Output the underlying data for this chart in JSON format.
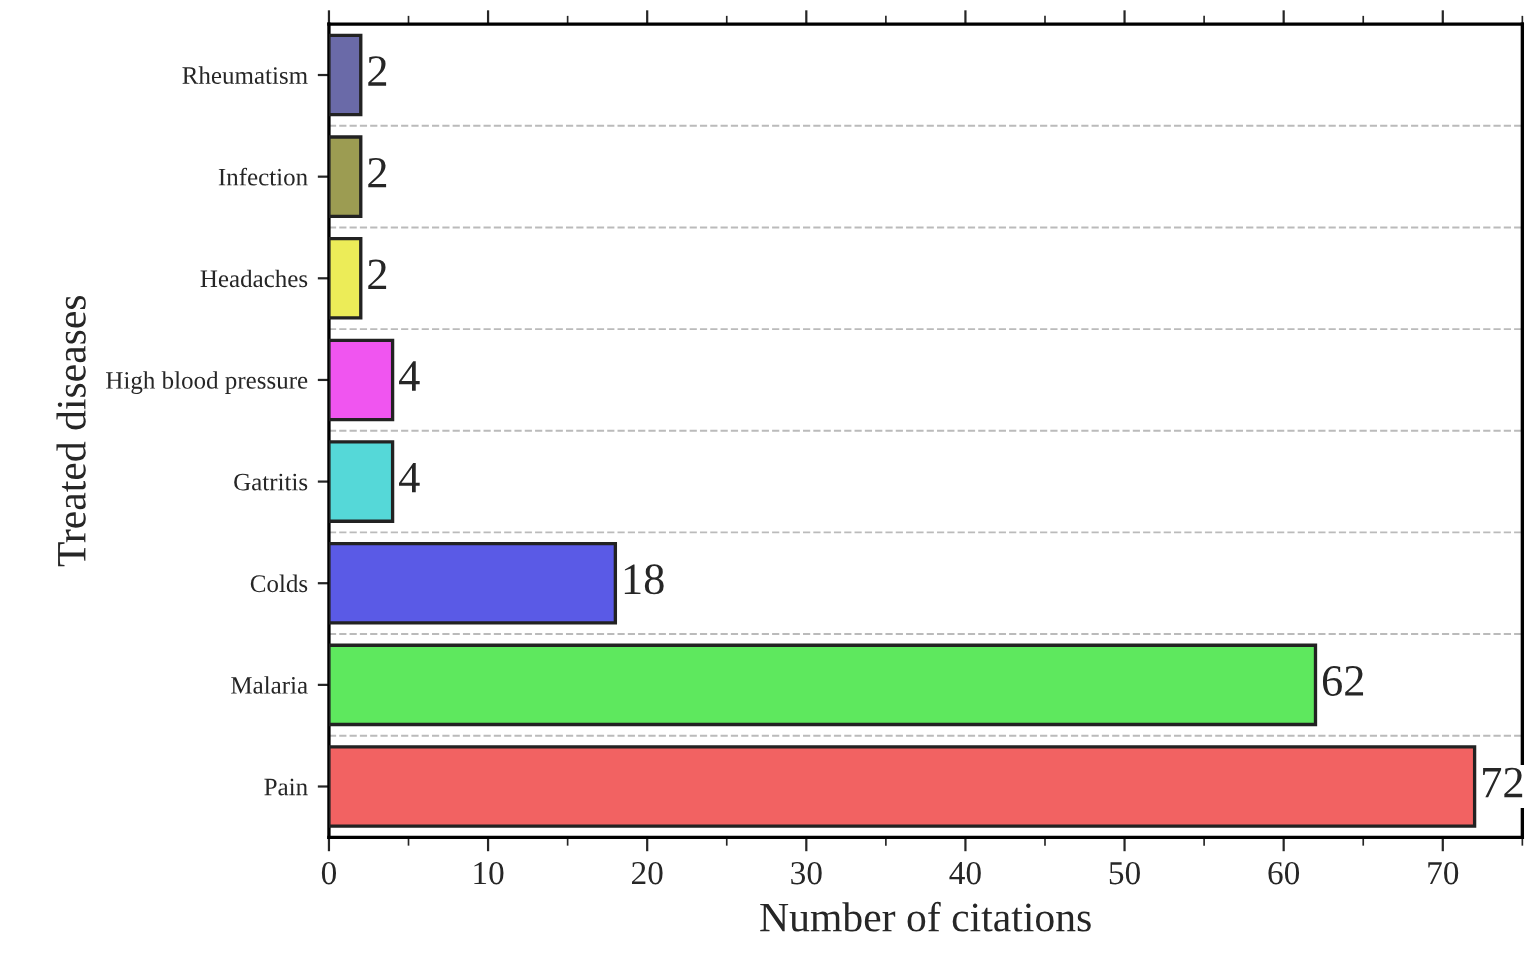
{
  "chart_data": {
    "type": "bar",
    "orientation": "horizontal",
    "xlabel": "Number of citations",
    "ylabel": "Treated diseases",
    "categories": [
      "Rheumatism",
      "Infection",
      "Headaches",
      "High blood pressure",
      "Gatritis",
      "Colds",
      "Malaria",
      "Pain"
    ],
    "values": [
      2,
      2,
      2,
      4,
      4,
      18,
      62,
      72
    ],
    "colors": [
      "#6a6aa8",
      "#9c9c52",
      "#ecec58",
      "#f055f0",
      "#55d8d8",
      "#5a5ae6",
      "#5ee85e",
      "#f26262"
    ],
    "xlim": [
      0,
      75
    ],
    "xticks": [
      0,
      10,
      20,
      30,
      40,
      50,
      60,
      70
    ],
    "grid": "y",
    "data_labels": true
  }
}
